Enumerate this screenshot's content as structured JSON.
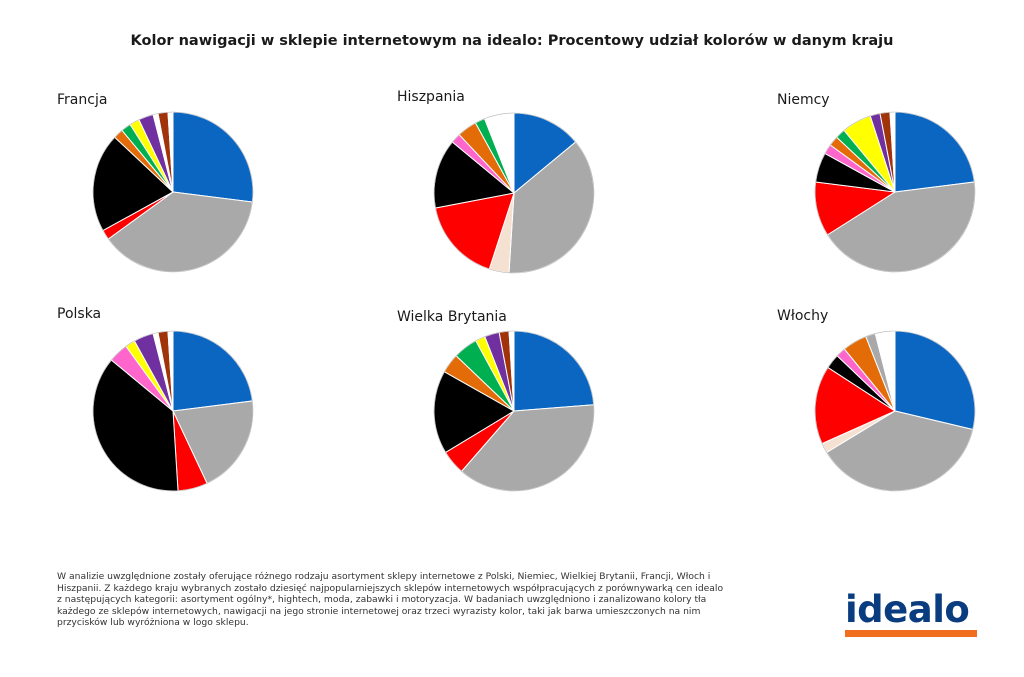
{
  "title": "Kolor nawigacji w sklepie internetowym na idealo: Procentowy udział kolorów w danym kraju",
  "colors": {
    "blue": "#0b66c2",
    "gray": "#a9a9a9",
    "beige": "#f4e1d2",
    "red": "#ff0000",
    "black": "#000000",
    "orange": "#e36c09",
    "green": "#00b050",
    "yellow": "#ffff00",
    "purple": "#7030a0",
    "pink": "#ff66cc",
    "brown": "#a0330a",
    "white": "#ffffff",
    "outline": "#b3b3b3"
  },
  "chart_data": [
    {
      "type": "pie",
      "title": "Francja",
      "slices": [
        {
          "color": "blue",
          "value": 27
        },
        {
          "color": "gray",
          "value": 38
        },
        {
          "color": "red",
          "value": 2
        },
        {
          "color": "black",
          "value": 20
        },
        {
          "color": "orange",
          "value": 2
        },
        {
          "color": "green",
          "value": 2
        },
        {
          "color": "yellow",
          "value": 2
        },
        {
          "color": "purple",
          "value": 3
        },
        {
          "color": "white",
          "value": 1
        },
        {
          "color": "brown",
          "value": 2
        },
        {
          "color": "white",
          "value": 1
        }
      ]
    },
    {
      "type": "pie",
      "title": "Hiszpania",
      "slices": [
        {
          "color": "blue",
          "value": 14
        },
        {
          "color": "gray",
          "value": 37
        },
        {
          "color": "beige",
          "value": 4
        },
        {
          "color": "red",
          "value": 17
        },
        {
          "color": "black",
          "value": 14
        },
        {
          "color": "pink",
          "value": 2
        },
        {
          "color": "orange",
          "value": 4
        },
        {
          "color": "green",
          "value": 2
        },
        {
          "color": "white",
          "value": 6
        }
      ]
    },
    {
      "type": "pie",
      "title": "Niemcy",
      "slices": [
        {
          "color": "blue",
          "value": 23
        },
        {
          "color": "gray",
          "value": 43
        },
        {
          "color": "red",
          "value": 11
        },
        {
          "color": "black",
          "value": 6
        },
        {
          "color": "pink",
          "value": 2
        },
        {
          "color": "orange",
          "value": 2
        },
        {
          "color": "green",
          "value": 2
        },
        {
          "color": "yellow",
          "value": 6
        },
        {
          "color": "purple",
          "value": 2
        },
        {
          "color": "brown",
          "value": 2
        },
        {
          "color": "white",
          "value": 1
        }
      ]
    },
    {
      "type": "pie",
      "title": "Polska",
      "slices": [
        {
          "color": "blue",
          "value": 23
        },
        {
          "color": "gray",
          "value": 20
        },
        {
          "color": "red",
          "value": 6
        },
        {
          "color": "black",
          "value": 37
        },
        {
          "color": "pink",
          "value": 4
        },
        {
          "color": "yellow",
          "value": 2
        },
        {
          "color": "purple",
          "value": 4
        },
        {
          "color": "white",
          "value": 1
        },
        {
          "color": "brown",
          "value": 2
        },
        {
          "color": "white",
          "value": 1
        }
      ]
    },
    {
      "type": "pie",
      "title": "Wielka Brytania",
      "slices": [
        {
          "color": "blue",
          "value": 24
        },
        {
          "color": "gray",
          "value": 38
        },
        {
          "color": "red",
          "value": 5
        },
        {
          "color": "black",
          "value": 17
        },
        {
          "color": "orange",
          "value": 4
        },
        {
          "color": "green",
          "value": 5
        },
        {
          "color": "yellow",
          "value": 2
        },
        {
          "color": "purple",
          "value": 3
        },
        {
          "color": "brown",
          "value": 2
        },
        {
          "color": "white",
          "value": 1
        }
      ]
    },
    {
      "type": "pie",
      "title": "Włochy",
      "slices": [
        {
          "color": "blue",
          "value": 29
        },
        {
          "color": "gray",
          "value": 38
        },
        {
          "color": "beige",
          "value": 2
        },
        {
          "color": "red",
          "value": 16
        },
        {
          "color": "black",
          "value": 3
        },
        {
          "color": "pink",
          "value": 2
        },
        {
          "color": "orange",
          "value": 5
        },
        {
          "color": "gray",
          "value": 2
        },
        {
          "color": "white",
          "value": 4
        }
      ]
    }
  ],
  "footnote": "W analizie uwzględnione zostały oferujące różnego rodzaju asortyment sklepy internetowe z Polski, Niemiec, Wielkiej Brytanii, Francji, Włoch i Hiszpanii.  Z każdego kraju wybranych zostało dziesięć najpopularniejszych sklepów internetowych współpracujących z porównywarką cen idealo z następujących kategorii: asortyment ogólny*, hightech, moda, zabawki i motoryzacja. W badaniach uwzględniono i zanalizowano kolory tła każdego ze sklepów internetowych, nawigacji na jego stronie internetowej oraz trzeci wyrazisty kolor, taki jak barwa umieszczonych na nim przycisków lub wyróżniona w logo sklepu.",
  "logo": {
    "text": "idealo",
    "text_color": "#0a3c80",
    "bar_color": "#f06e1e"
  }
}
